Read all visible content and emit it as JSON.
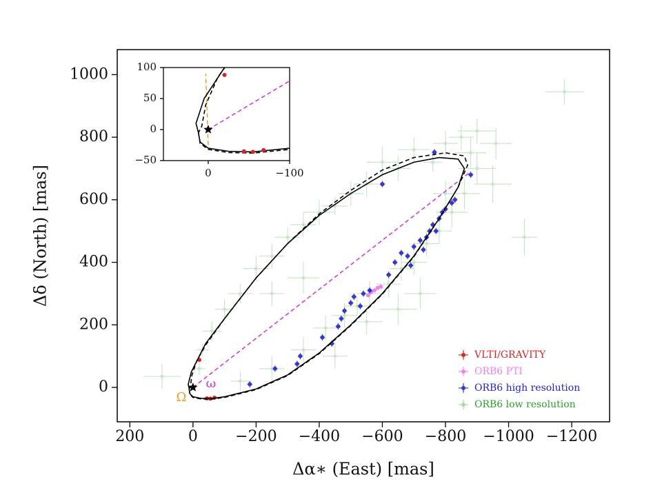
{
  "chart_data": {
    "type": "scatter",
    "xlabel": "Δα∗ (East) [mas]",
    "ylabel": "Δδ (North) [mas]",
    "xlim": [
      240,
      -1320
    ],
    "ylim": [
      -110,
      1080
    ],
    "xticks": [
      200,
      0,
      {
        "value": -200,
        "label": "−200"
      },
      {
        "value": -400,
        "label": "−400"
      },
      {
        "value": -600,
        "label": "−600"
      },
      {
        "value": -800,
        "label": "−800"
      },
      {
        "value": -1000,
        "label": "−1000"
      },
      {
        "value": -1200,
        "label": "−1200"
      }
    ],
    "yticks": [
      0,
      200,
      400,
      600,
      800,
      1000
    ],
    "legend": "lower right",
    "series": [
      {
        "name": "VLTI/GRAVITY",
        "color": "#d62728",
        "opacity": 1,
        "inset": true,
        "x": [
          -20,
          -44,
          -55,
          -68
        ],
        "y": [
          88,
          -35,
          -36,
          -33
        ],
        "xerr": [
          1,
          1,
          1,
          1
        ],
        "yerr": [
          1,
          1,
          1,
          1
        ]
      },
      {
        "name": "ORB6 PTI",
        "color": "#ee82ee",
        "opacity": 1,
        "inset": false,
        "x": [
          -555,
          -565,
          -575,
          -585,
          -595
        ],
        "y": [
          295,
          305,
          310,
          318,
          322
        ],
        "xerr": [
          5,
          5,
          5,
          5,
          5
        ],
        "yerr": [
          5,
          5,
          5,
          5,
          5
        ]
      },
      {
        "name": "ORB6 high resolution",
        "color": "#2222cc",
        "opacity": 0.9,
        "inset": false,
        "x": [
          -765,
          -600,
          -880,
          -180,
          -260,
          -330,
          -340,
          -440,
          -410,
          -460,
          -470,
          -480,
          -500,
          -510,
          -530,
          -540,
          -560,
          -620,
          -640,
          -660,
          -680,
          -700,
          -720,
          -740,
          -750,
          -760,
          -780,
          -790,
          -800,
          -820,
          -830,
          -770,
          -730,
          -690
        ],
        "y": [
          752,
          650,
          680,
          10,
          60,
          75,
          100,
          140,
          160,
          195,
          220,
          245,
          270,
          290,
          260,
          300,
          310,
          360,
          400,
          430,
          420,
          450,
          470,
          480,
          500,
          520,
          540,
          560,
          570,
          590,
          600,
          500,
          440,
          390
        ],
        "xerr": [
          8,
          8,
          8,
          8,
          8,
          8,
          8,
          8,
          8,
          8,
          8,
          8,
          8,
          8,
          8,
          8,
          8,
          8,
          8,
          8,
          8,
          8,
          8,
          8,
          8,
          8,
          8,
          8,
          8,
          8,
          8,
          8,
          8,
          8
        ],
        "yerr": [
          10,
          10,
          10,
          10,
          10,
          10,
          10,
          10,
          10,
          10,
          10,
          10,
          10,
          10,
          10,
          10,
          10,
          10,
          10,
          10,
          10,
          10,
          10,
          10,
          10,
          10,
          10,
          10,
          10,
          10,
          10,
          10,
          10,
          10
        ]
      },
      {
        "name": "ORB6 low resolution",
        "color": "#2ca02c",
        "opacity": 0.25,
        "inset": false,
        "x": [
          -1177,
          98,
          -1050,
          -960,
          -900,
          -850,
          -800,
          -760,
          -700,
          -650,
          -600,
          -550,
          -500,
          -450,
          -400,
          -350,
          -300,
          -250,
          -200,
          -150,
          -100,
          -60,
          -30,
          -20,
          -150,
          -250,
          -350,
          -420,
          -480,
          -520,
          -560,
          -620,
          -660,
          -700,
          -740,
          -780,
          -820,
          -860,
          -900,
          -950,
          -550,
          -650,
          -450,
          -720,
          -350,
          -250,
          -800,
          -880
        ],
        "y": [
          945,
          35,
          480,
          780,
          820,
          800,
          780,
          720,
          760,
          700,
          720,
          650,
          620,
          580,
          560,
          520,
          480,
          420,
          380,
          300,
          250,
          180,
          120,
          60,
          20,
          60,
          120,
          190,
          230,
          260,
          300,
          330,
          380,
          400,
          460,
          500,
          560,
          620,
          700,
          650,
          210,
          250,
          100,
          300,
          350,
          300,
          620,
          750
        ],
        "xerr": [
          60,
          60,
          40,
          50,
          60,
          40,
          40,
          30,
          50,
          40,
          50,
          40,
          40,
          40,
          50,
          40,
          40,
          40,
          40,
          40,
          30,
          30,
          20,
          20,
          30,
          40,
          40,
          40,
          40,
          40,
          40,
          40,
          40,
          40,
          40,
          40,
          50,
          50,
          60,
          60,
          50,
          60,
          40,
          50,
          50,
          40,
          40,
          50
        ],
        "yerr": [
          40,
          40,
          60,
          50,
          40,
          40,
          40,
          30,
          40,
          40,
          50,
          40,
          40,
          30,
          40,
          40,
          30,
          40,
          40,
          30,
          30,
          30,
          20,
          20,
          30,
          40,
          40,
          40,
          40,
          30,
          40,
          40,
          40,
          40,
          40,
          40,
          50,
          50,
          50,
          60,
          40,
          50,
          40,
          50,
          50,
          40,
          40,
          50
        ]
      }
    ],
    "orbits": [
      {
        "color": "#000000",
        "dash": false,
        "x": [
          12,
          10,
          0,
          -25,
          -55,
          -100,
          -200,
          -300,
          -400,
          -500,
          -600,
          -700,
          -780,
          -840,
          -860,
          -840,
          -780,
          -700,
          -600,
          -500,
          -400,
          -300,
          -200,
          -100,
          -40,
          -15,
          5,
          15,
          12
        ],
        "y": [
          -5,
          -20,
          -30,
          -35,
          -36,
          -30,
          -5,
          40,
          110,
          200,
          300,
          420,
          540,
          640,
          700,
          730,
          735,
          720,
          680,
          620,
          550,
          460,
          350,
          220,
          140,
          90,
          50,
          10,
          -5
        ]
      },
      {
        "color": "#000000",
        "dash": true,
        "x": [
          12,
          10,
          0,
          -25,
          -55,
          -100,
          -200,
          -300,
          -400,
          -500,
          -600,
          -700,
          -780,
          -840,
          -870,
          -860,
          -800,
          -700,
          -600,
          -500,
          -400,
          -300,
          -200,
          -100,
          -40,
          -12,
          3,
          8,
          12
        ],
        "y": [
          -5,
          -22,
          -32,
          -37,
          -38,
          -32,
          -7,
          38,
          108,
          198,
          298,
          418,
          540,
          640,
          710,
          740,
          750,
          735,
          695,
          630,
          555,
          460,
          350,
          220,
          135,
          85,
          40,
          5,
          -5
        ]
      }
    ],
    "lines": [
      {
        "color": "#cc33cc",
        "inset_only": false,
        "x": [
          0,
          -880
        ],
        "y": [
          0,
          690
        ]
      },
      {
        "color": "#e8a020",
        "inset_only": true,
        "x": [
          0,
          3
        ],
        "y": [
          -25,
          90
        ]
      }
    ],
    "primary": {
      "x": 0,
      "y": 0
    },
    "annotations": [
      {
        "text": "Ω",
        "color": "#e8a020"
      },
      {
        "text": "ω",
        "color": "#cc33cc"
      }
    ],
    "inset": {
      "xlim": [
        55,
        -100
      ],
      "ylim": [
        -50,
        100
      ],
      "xticks": [
        0,
        {
          "value": -100,
          "label": "−100"
        }
      ],
      "yticks": [
        {
          "value": -50,
          "label": "−50"
        },
        0,
        50,
        100
      ]
    }
  }
}
